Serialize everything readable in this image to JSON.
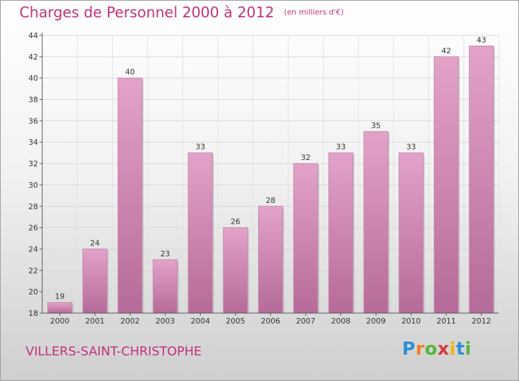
{
  "header": {
    "title": "Charges de Personnel 2000 à 2012",
    "subtitle": "(en milliers d'€)"
  },
  "footer": {
    "commune": "VILLERS-SAINT-CHRISTOPHE",
    "logo": [
      "P",
      "r",
      "o",
      "x",
      "i",
      "t",
      "i"
    ]
  },
  "colors": {
    "title": "#c2327c",
    "bar_light": "#e3a3c8",
    "bar_dark": "#b56b97",
    "logo": [
      "#2e8fd6",
      "#f07d1f",
      "#55b53a",
      "#d63a3a",
      "#f0b400",
      "#2e8fd6",
      "#55b53a"
    ]
  },
  "chart_data": {
    "type": "bar",
    "categories": [
      "2000",
      "2001",
      "2002",
      "2003",
      "2004",
      "2005",
      "2006",
      "2007",
      "2008",
      "2009",
      "2010",
      "2011",
      "2012"
    ],
    "values": [
      19,
      24,
      40,
      23,
      33,
      26,
      28,
      32,
      33,
      35,
      33,
      42,
      43
    ],
    "yticks": [
      18,
      20,
      22,
      24,
      26,
      28,
      30,
      32,
      34,
      36,
      38,
      40,
      42,
      44
    ],
    "ylim": [
      18,
      44
    ],
    "title": "Charges de Personnel 2000 à 2012",
    "xlabel": "",
    "ylabel": "",
    "grid": true,
    "data_labels": true
  }
}
